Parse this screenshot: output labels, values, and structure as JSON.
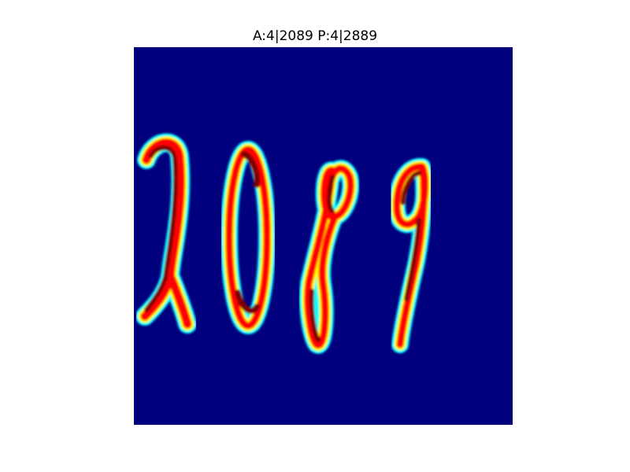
{
  "figure": {
    "title": "A:4|2089 P:4|2889"
  },
  "image": {
    "description_icon": "handwritten-digits-heatmap-image",
    "colormap": "jet",
    "background_color": "#00007f",
    "stroke_colors": [
      "#7f0000",
      "#ff0000",
      "#ffff00",
      "#00ffff",
      "#0000ff"
    ]
  }
}
